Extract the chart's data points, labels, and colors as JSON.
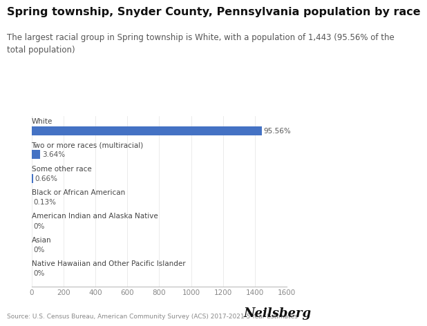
{
  "title": "Spring township, Snyder County, Pennsylvania population by race",
  "subtitle": "The largest racial group in Spring township is White, with a population of 1,443 (95.56% of the\ntotal population)",
  "categories": [
    "White",
    "Two or more races (multiracial)",
    "Some other race",
    "Black or African American",
    "American Indian and Alaska Native",
    "Asian",
    "Native Hawaiian and Other Pacific Islander"
  ],
  "values": [
    1443,
    55,
    10,
    2,
    0,
    0,
    0
  ],
  "percentages": [
    "95.56%",
    "3.64%",
    "0.66%",
    "0.13%",
    "0%",
    "0%",
    "0%"
  ],
  "bar_color": "#4472C4",
  "xlim": [
    0,
    1600
  ],
  "xticks": [
    0,
    200,
    400,
    600,
    800,
    1000,
    1200,
    1400,
    1600
  ],
  "source_text": "Source: U.S. Census Bureau, American Community Survey (ACS) 2017-2021 5-Year Estimates",
  "brand_text": "Neilsberg",
  "background_color": "#ffffff",
  "title_fontsize": 11.5,
  "subtitle_fontsize": 8.5,
  "category_fontsize": 7.5,
  "pct_fontsize": 7.5,
  "tick_fontsize": 7.5,
  "source_fontsize": 6.5,
  "brand_fontsize": 13
}
